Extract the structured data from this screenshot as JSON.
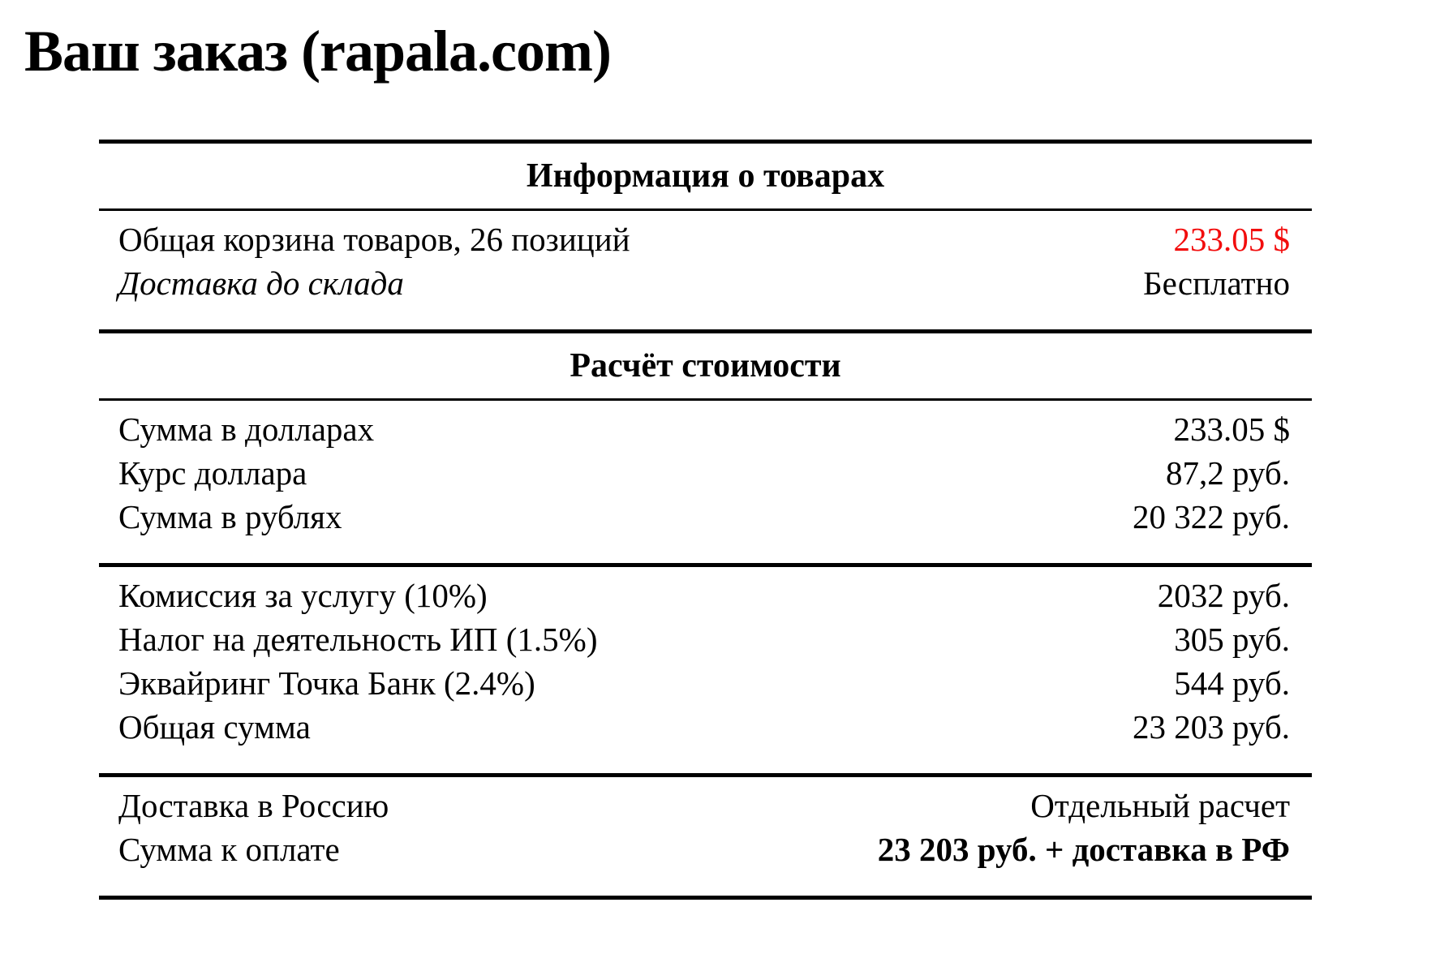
{
  "page": {
    "title": "Ваш заказ (rapala.com)"
  },
  "colors": {
    "accent_red": "#f20d0d",
    "text": "#000000",
    "background": "#ffffff",
    "rule": "#000000"
  },
  "table": {
    "sections": [
      {
        "header": "Информация о товарах",
        "groups": [
          {
            "rows": [
              {
                "label": "Общая корзина товаров, 26 позиций",
                "value": "233.05 $"
              },
              {
                "label": "Доставка до склада",
                "value": "Бесплатно"
              }
            ]
          }
        ]
      },
      {
        "header": "Расчёт стоимости",
        "groups": [
          {
            "rows": [
              {
                "label": "Сумма в долларах",
                "value": "233.05 $"
              },
              {
                "label": "Курс доллара",
                "value": "87,2 руб."
              },
              {
                "label": "Сумма в рублях",
                "value": "20 322 руб."
              }
            ]
          },
          {
            "rows": [
              {
                "label": "Комиссия за услугу (10%)",
                "value": "2032 руб."
              },
              {
                "label": "Налог на деятельность ИП (1.5%)",
                "value": "305 руб."
              },
              {
                "label": "Эквайринг Точка Банк (2.4%)",
                "value": "544 руб."
              },
              {
                "label": "Общая сумма",
                "value": "23 203 руб."
              }
            ]
          },
          {
            "rows": [
              {
                "label": "Доставка в Россию",
                "value": "Отдельный расчет"
              },
              {
                "label": "Сумма к оплате",
                "value": "23 203 руб. + доставка в РФ"
              }
            ]
          }
        ]
      }
    ]
  }
}
